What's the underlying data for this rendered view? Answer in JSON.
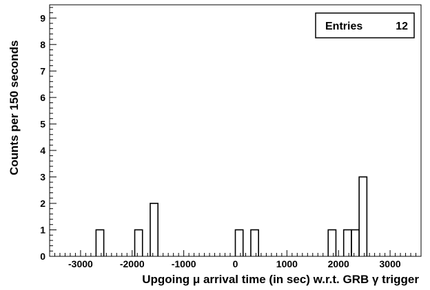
{
  "chart_data": {
    "type": "bar",
    "title": "",
    "xlabel": "Upgoing μ arrival time (in sec) w.r.t. GRB γ trigger",
    "ylabel": "Counts per 150 seconds",
    "xlim": [
      -3600,
      3600
    ],
    "ylim": [
      0,
      9.5
    ],
    "bin_width": 150,
    "x_ticks": [
      -3000,
      -2000,
      -1000,
      0,
      1000,
      2000,
      3000
    ],
    "x_tick_labels": [
      "-3000",
      "-2000",
      "-1000",
      "0",
      "1000",
      "2000",
      "3000"
    ],
    "y_ticks": [
      0,
      1,
      2,
      3,
      4,
      5,
      6,
      7,
      8,
      9
    ],
    "y_tick_labels": [
      "0",
      "1",
      "2",
      "3",
      "4",
      "5",
      "6",
      "7",
      "8",
      "9"
    ],
    "bins": [
      {
        "x": -2700,
        "value": 1
      },
      {
        "x": -1950,
        "value": 1
      },
      {
        "x": -1650,
        "value": 2
      },
      {
        "x": 0,
        "value": 1
      },
      {
        "x": 300,
        "value": 1
      },
      {
        "x": 1800,
        "value": 1
      },
      {
        "x": 2100,
        "value": 1
      },
      {
        "x": 2250,
        "value": 1
      },
      {
        "x": 2400,
        "value": 3
      }
    ],
    "grid": false,
    "legend_position": "top-right",
    "stats": {
      "label": "Entries",
      "value": "12"
    }
  }
}
